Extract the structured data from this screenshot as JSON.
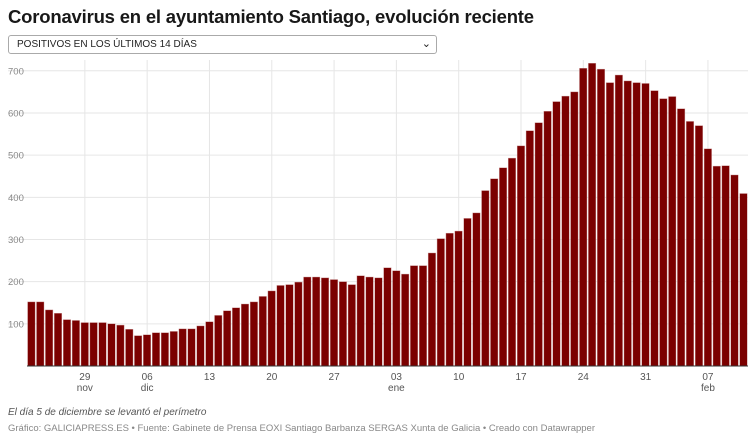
{
  "title": "Coronavirus en el ayuntamiento Santiago, evolución reciente",
  "selector": {
    "value": "POSITIVOS EN LOS ÚLTIMOS 14 DÍAS",
    "icon": "chevron-down-icon"
  },
  "footnote": "El día 5 de diciembre se levantó el perímetro",
  "source": "Gráfico: GALICIAPRESS.ES • Fuente: Gabinete de Prensa EOXI Santiago Barbanza SERGAS Xunta de Galicia • Creado con Datawrapper",
  "chart_data": {
    "type": "bar",
    "color": "#7b0000",
    "start_date": "2020-11-23",
    "end_date": "2021-02-11",
    "ylim": [
      0,
      720
    ],
    "yticks": [
      100,
      200,
      300,
      400,
      500,
      600,
      700
    ],
    "grid": true,
    "xticks": [
      {
        "label": "29",
        "sub": "nov",
        "index": 6
      },
      {
        "label": "06",
        "sub": "dic",
        "index": 13
      },
      {
        "label": "13",
        "sub": "",
        "index": 20
      },
      {
        "label": "20",
        "sub": "",
        "index": 27
      },
      {
        "label": "27",
        "sub": "",
        "index": 34
      },
      {
        "label": "03",
        "sub": "ene",
        "index": 41
      },
      {
        "label": "10",
        "sub": "",
        "index": 48
      },
      {
        "label": "17",
        "sub": "",
        "index": 55
      },
      {
        "label": "24",
        "sub": "",
        "index": 62
      },
      {
        "label": "31",
        "sub": "",
        "index": 69
      },
      {
        "label": "07",
        "sub": "feb",
        "index": 76
      }
    ],
    "values": [
      152,
      152,
      133,
      125,
      110,
      108,
      103,
      103,
      103,
      100,
      97,
      87,
      72,
      74,
      79,
      79,
      82,
      88,
      88,
      95,
      105,
      120,
      131,
      138,
      147,
      152,
      165,
      178,
      191,
      193,
      199,
      211,
      211,
      209,
      205,
      200,
      193,
      214,
      211,
      209,
      233,
      226,
      218,
      238,
      238,
      268,
      302,
      315,
      320,
      350,
      363,
      416,
      444,
      470,
      493,
      522,
      558,
      577,
      604,
      627,
      640,
      650,
      706,
      718,
      704,
      672,
      690,
      676,
      672,
      670,
      653,
      634,
      639,
      610,
      580,
      570,
      515,
      474,
      475,
      453,
      409
    ]
  }
}
